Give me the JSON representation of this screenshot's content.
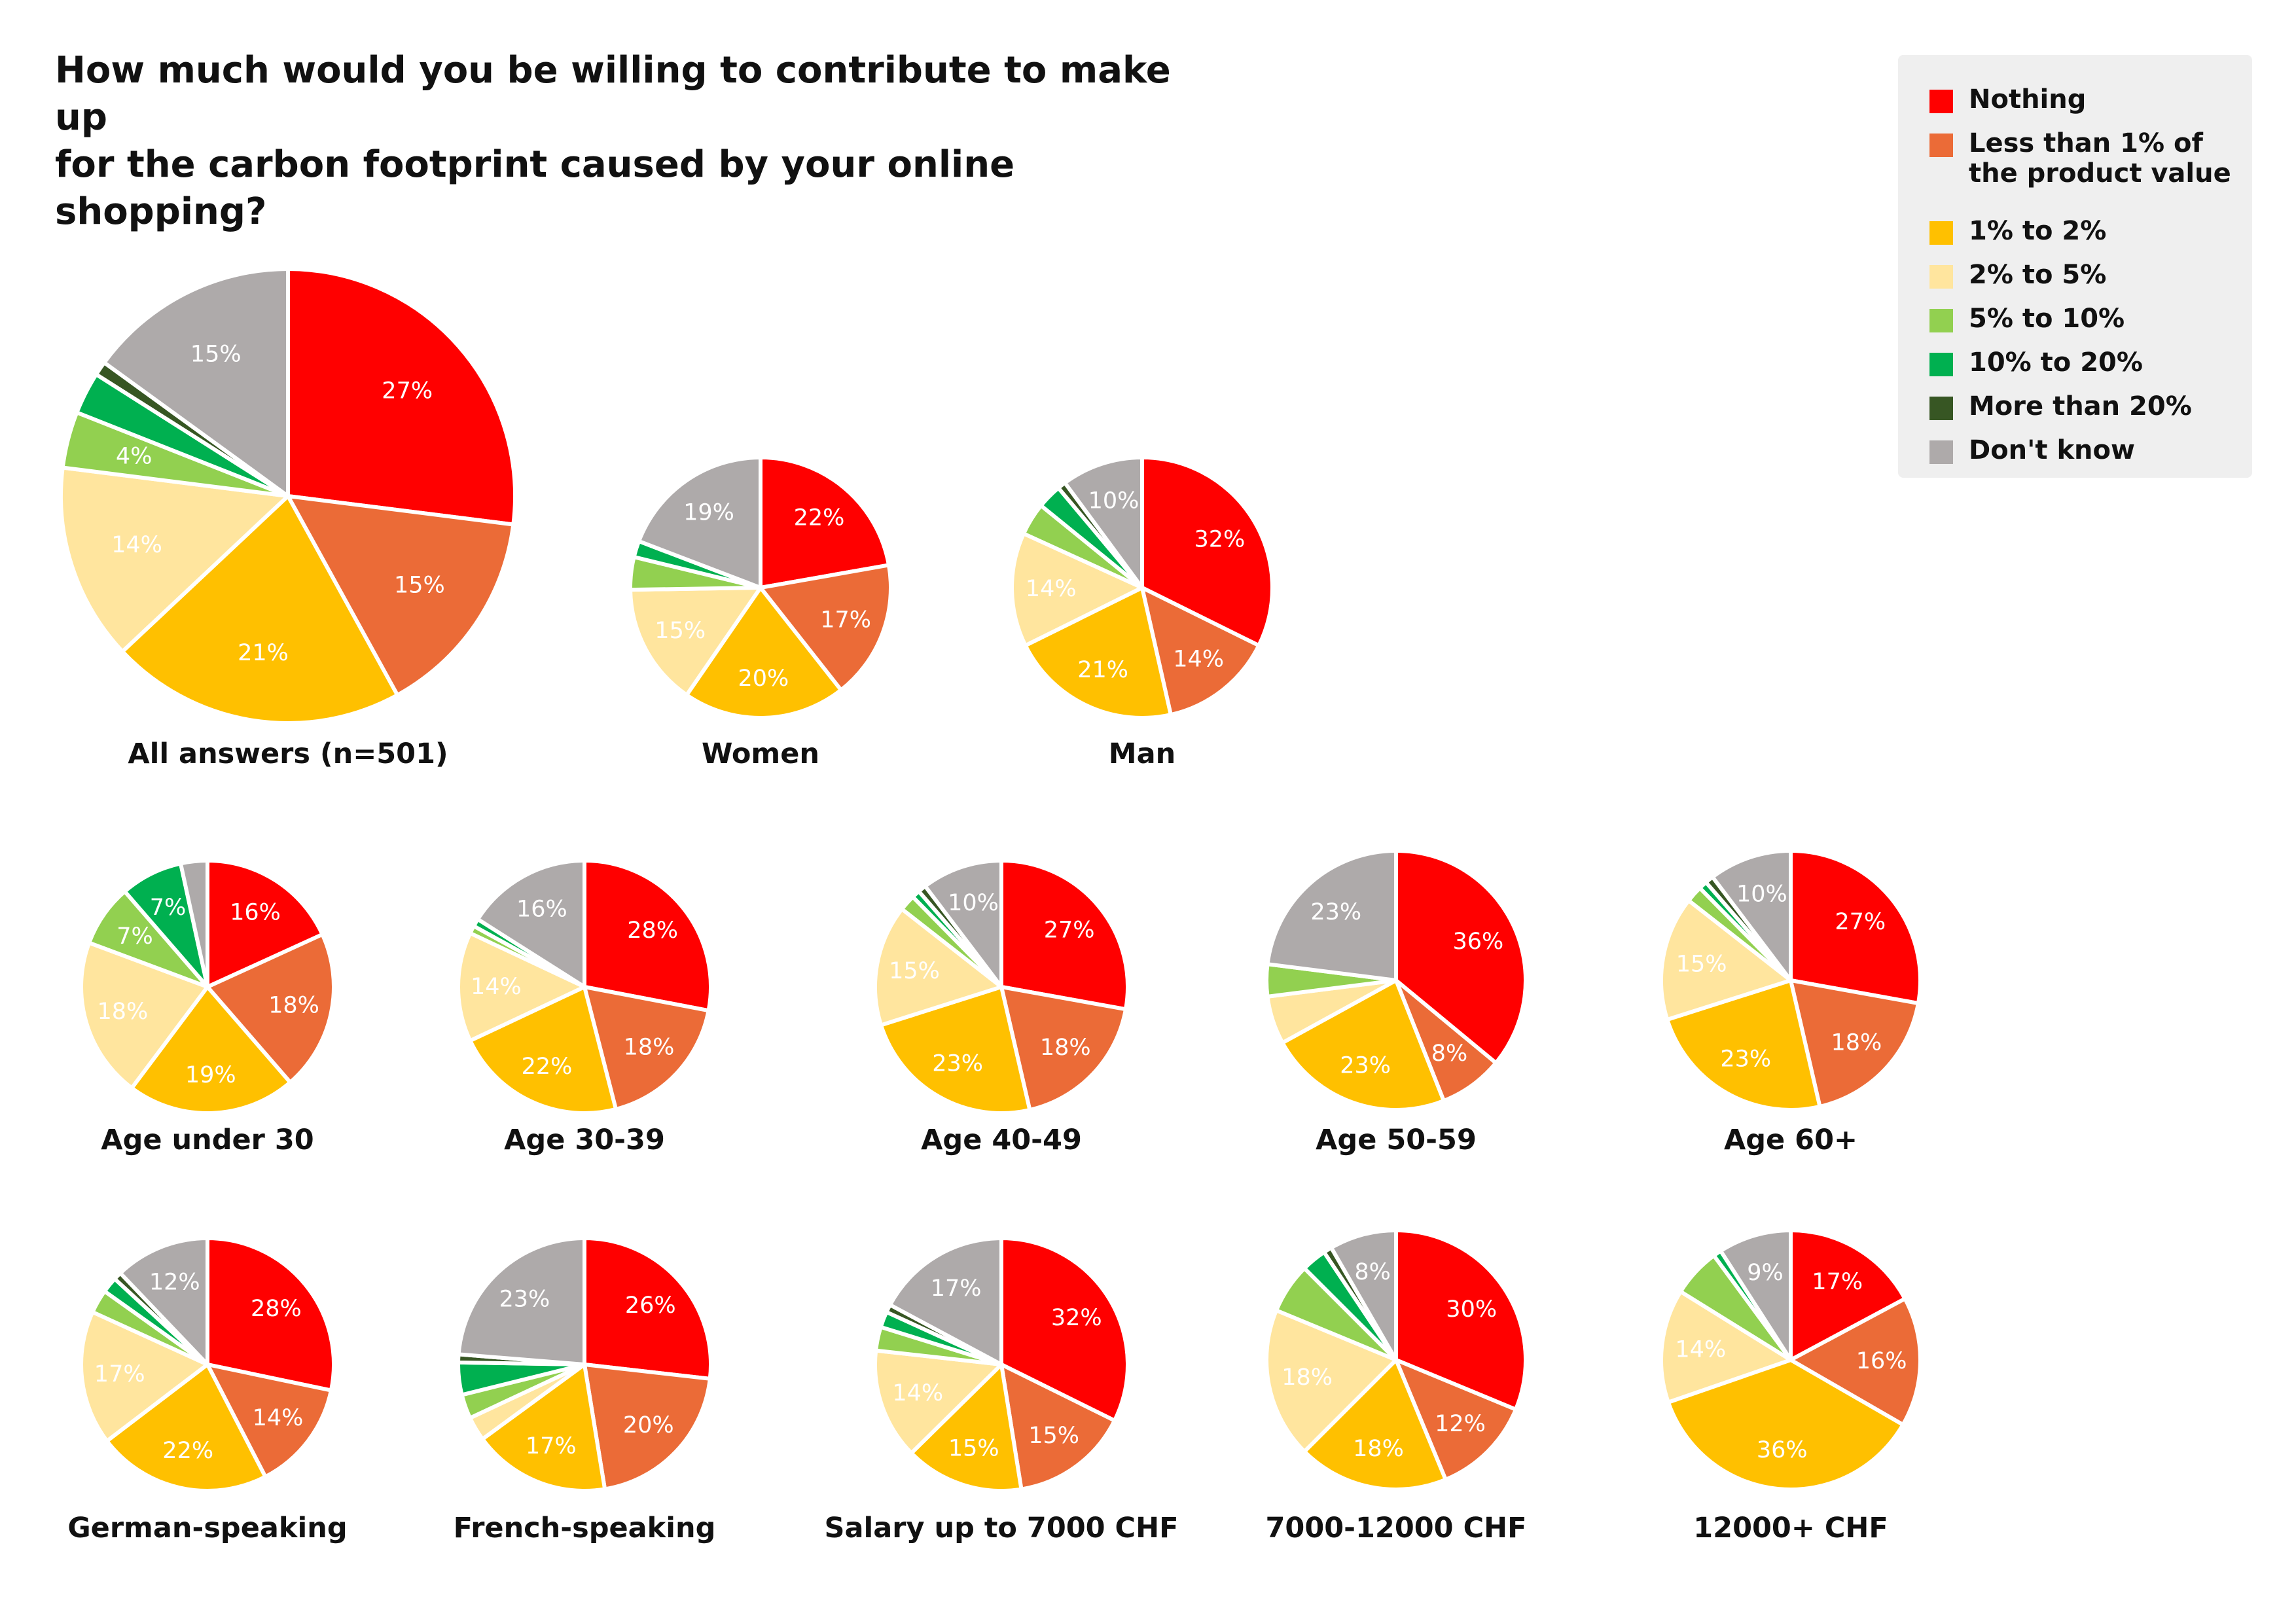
{
  "title": {
    "line1": "How much would you be willing to contribute to make up",
    "line2": "for the carbon footprint caused by your online shopping?"
  },
  "legend": [
    {
      "label": "Nothing",
      "color": "#ff0000"
    },
    {
      "label": "Less than 1% of\nthe product value",
      "color": "#eb6b37"
    },
    {
      "label": "1% to 2%",
      "color": "#ffc000"
    },
    {
      "label": "2% to 5%",
      "color": "#ffe59e"
    },
    {
      "label": "5% to 10%",
      "color": "#92d050"
    },
    {
      "label": "10% to 20%",
      "color": "#00b050"
    },
    {
      "label": "More than 20%",
      "color": "#375623"
    },
    {
      "label": "Don't know",
      "color": "#aeaaaa"
    }
  ],
  "chart_data": {
    "type": "pie",
    "categories": [
      "Nothing",
      "Less than 1% of the product value",
      "1% to 2%",
      "2% to 5%",
      "5% to 10%",
      "10% to 20%",
      "More than 20%",
      "Don't know"
    ],
    "charts": [
      {
        "title": "All answers (n=501)",
        "values": [
          27,
          15,
          21,
          14,
          4,
          3,
          1,
          15
        ],
        "labels": [
          "27%",
          "15%",
          "21%",
          "14%",
          "4%",
          "",
          "",
          "15%"
        ]
      },
      {
        "title": "Women",
        "values": [
          22,
          17,
          20,
          15,
          4,
          2,
          0,
          19
        ],
        "labels": [
          "22%",
          "17%",
          "20%",
          "15%",
          "",
          "",
          "",
          "19%"
        ]
      },
      {
        "title": "Man",
        "values": [
          32,
          14,
          21,
          14,
          4,
          3,
          1,
          10
        ],
        "labels": [
          "32%",
          "14%",
          "21%",
          "14%",
          "",
          "",
          "",
          "10%"
        ]
      },
      {
        "title": "Age under 30",
        "values": [
          16,
          18,
          19,
          18,
          7,
          7,
          0,
          3
        ],
        "labels": [
          "16%",
          "18%",
          "19%",
          "18%",
          "7%",
          "7%",
          "",
          ""
        ]
      },
      {
        "title": "Age 30-39",
        "values": [
          28,
          18,
          22,
          14,
          1,
          1,
          0,
          16
        ],
        "labels": [
          "28%",
          "18%",
          "22%",
          "14%",
          "",
          "",
          "",
          "16%"
        ]
      },
      {
        "title": "Age 40-49",
        "values": [
          27,
          18,
          23,
          15,
          2,
          1,
          1,
          10
        ],
        "labels": [
          "27%",
          "18%",
          "23%",
          "15%",
          "",
          "",
          "",
          "10%"
        ]
      },
      {
        "title": "Age 50-59",
        "values": [
          36,
          8,
          23,
          6,
          4,
          0,
          0,
          23
        ],
        "labels": [
          "36%",
          "8%",
          "23%",
          "",
          "",
          "",
          "",
          "23%"
        ]
      },
      {
        "title": "Age 60+",
        "values": [
          27,
          18,
          23,
          15,
          2,
          1,
          1,
          10
        ],
        "labels": [
          "27%",
          "18%",
          "23%",
          "15%",
          "",
          "",
          "",
          "10%"
        ]
      },
      {
        "title": "German-speaking",
        "values": [
          28,
          14,
          22,
          17,
          3,
          2,
          1,
          12
        ],
        "labels": [
          "28%",
          "14%",
          "22%",
          "17%",
          "",
          "",
          "",
          "12%"
        ]
      },
      {
        "title": "French-speaking",
        "values": [
          26,
          20,
          17,
          3,
          3,
          4,
          1,
          23
        ],
        "labels": [
          "26%",
          "20%",
          "17%",
          "",
          "",
          "",
          "",
          "23%"
        ]
      },
      {
        "title": "Salary up to 7000 CHF",
        "values": [
          32,
          15,
          15,
          14,
          3,
          2,
          1,
          17
        ],
        "labels": [
          "32%",
          "15%",
          "15%",
          "14%",
          "",
          "",
          "",
          "17%"
        ]
      },
      {
        "title": "7000-12000 CHF",
        "values": [
          30,
          12,
          18,
          18,
          6,
          3,
          1,
          8
        ],
        "labels": [
          "30%",
          "12%",
          "18%",
          "18%",
          "",
          "",
          "",
          "8%"
        ]
      },
      {
        "title": "12000+ CHF",
        "values": [
          17,
          16,
          36,
          14,
          6,
          1,
          0,
          9
        ],
        "labels": [
          "17%",
          "16%",
          "36%",
          "14%",
          "",
          "",
          "",
          "9%"
        ]
      }
    ]
  }
}
